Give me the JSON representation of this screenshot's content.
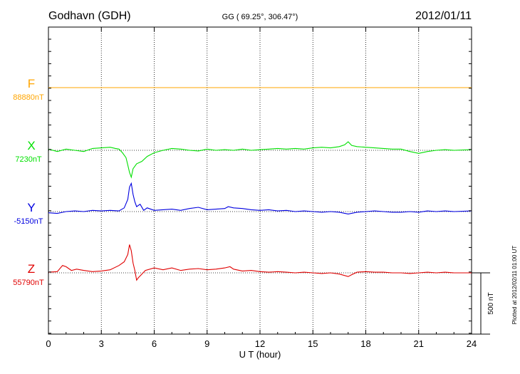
{
  "chart_data": {
    "type": "line",
    "title": "Godhavn (GDH)",
    "subtitle": "GG ( 69.25°, 306.47°)",
    "date": "2012/01/11",
    "xlabel": "U T (hour)",
    "xlim": [
      0,
      24
    ],
    "x_ticks": [
      0,
      3,
      6,
      9,
      12,
      15,
      18,
      21,
      24
    ],
    "x_tick_labels": [
      "0",
      "3",
      "6",
      "9",
      "12",
      "15",
      "18",
      "21",
      "24"
    ],
    "scale_bar_label": "500 nT",
    "scale_bar_nT": 500,
    "plotted_note": "Plotted at 2012/02/11 01:00 UT",
    "grid": true,
    "series": [
      {
        "name": "F",
        "baseline_label": "88880nT",
        "baseline_nT": 88880,
        "color": "#ffa500",
        "points": [
          [
            0,
            0
          ],
          [
            24,
            0
          ]
        ]
      },
      {
        "name": "X",
        "baseline_label": "7230nT",
        "baseline_nT": 7230,
        "color": "#00e000",
        "points": [
          [
            0,
            10
          ],
          [
            0.5,
            -10
          ],
          [
            1,
            10
          ],
          [
            1.5,
            0
          ],
          [
            2,
            -10
          ],
          [
            2.5,
            15
          ],
          [
            3,
            20
          ],
          [
            3.5,
            25
          ],
          [
            3.8,
            15
          ],
          [
            4,
            10
          ],
          [
            4.2,
            -20
          ],
          [
            4.4,
            -60
          ],
          [
            4.5,
            -120
          ],
          [
            4.6,
            -180
          ],
          [
            4.7,
            -220
          ],
          [
            4.8,
            -150
          ],
          [
            5,
            -110
          ],
          [
            5.3,
            -90
          ],
          [
            5.6,
            -50
          ],
          [
            6,
            -20
          ],
          [
            6.5,
            0
          ],
          [
            7,
            15
          ],
          [
            7.5,
            10
          ],
          [
            8,
            0
          ],
          [
            8.5,
            -5
          ],
          [
            9,
            10
          ],
          [
            9.5,
            0
          ],
          [
            10,
            5
          ],
          [
            10.5,
            0
          ],
          [
            11,
            10
          ],
          [
            11.5,
            0
          ],
          [
            12,
            5
          ],
          [
            12.5,
            10
          ],
          [
            13,
            15
          ],
          [
            13.5,
            10
          ],
          [
            14,
            15
          ],
          [
            14.5,
            10
          ],
          [
            15,
            20
          ],
          [
            15.5,
            25
          ],
          [
            16,
            20
          ],
          [
            16.5,
            30
          ],
          [
            16.8,
            45
          ],
          [
            17,
            70
          ],
          [
            17.2,
            40
          ],
          [
            17.5,
            30
          ],
          [
            18,
            25
          ],
          [
            18.5,
            20
          ],
          [
            19,
            15
          ],
          [
            19.5,
            10
          ],
          [
            20,
            10
          ],
          [
            20.5,
            -10
          ],
          [
            21,
            -25
          ],
          [
            21.5,
            -10
          ],
          [
            22,
            0
          ],
          [
            22.5,
            5
          ],
          [
            23,
            0
          ],
          [
            24,
            5
          ]
        ]
      },
      {
        "name": "Y",
        "baseline_label": "-5150nT",
        "baseline_nT": -5150,
        "color": "#0000e0",
        "points": [
          [
            0,
            -10
          ],
          [
            0.5,
            -15
          ],
          [
            1,
            0
          ],
          [
            1.5,
            5
          ],
          [
            2,
            0
          ],
          [
            2.5,
            10
          ],
          [
            3,
            5
          ],
          [
            3.5,
            10
          ],
          [
            4,
            5
          ],
          [
            4.3,
            30
          ],
          [
            4.5,
            100
          ],
          [
            4.6,
            200
          ],
          [
            4.7,
            230
          ],
          [
            4.8,
            140
          ],
          [
            4.9,
            80
          ],
          [
            5,
            40
          ],
          [
            5.2,
            60
          ],
          [
            5.4,
            10
          ],
          [
            5.6,
            30
          ],
          [
            6,
            10
          ],
          [
            6.5,
            15
          ],
          [
            7,
            20
          ],
          [
            7.5,
            10
          ],
          [
            8,
            25
          ],
          [
            8.5,
            35
          ],
          [
            9,
            15
          ],
          [
            9.5,
            20
          ],
          [
            10,
            25
          ],
          [
            10.2,
            40
          ],
          [
            10.5,
            30
          ],
          [
            11,
            25
          ],
          [
            11.5,
            15
          ],
          [
            12,
            10
          ],
          [
            12.5,
            15
          ],
          [
            13,
            5
          ],
          [
            13.5,
            10
          ],
          [
            14,
            0
          ],
          [
            14.5,
            5
          ],
          [
            15,
            0
          ],
          [
            15.5,
            -5
          ],
          [
            16,
            0
          ],
          [
            16.5,
            -5
          ],
          [
            17,
            -20
          ],
          [
            17.5,
            -5
          ],
          [
            18,
            0
          ],
          [
            18.5,
            5
          ],
          [
            19,
            0
          ],
          [
            19.5,
            -5
          ],
          [
            20,
            -5
          ],
          [
            20.5,
            0
          ],
          [
            21,
            -5
          ],
          [
            21.5,
            5
          ],
          [
            22,
            0
          ],
          [
            22.5,
            5
          ],
          [
            23,
            0
          ],
          [
            24,
            5
          ]
        ]
      },
      {
        "name": "Z",
        "baseline_label": "55790nT",
        "baseline_nT": 55790,
        "color": "#e00000",
        "points": [
          [
            0,
            5
          ],
          [
            0.5,
            10
          ],
          [
            0.8,
            60
          ],
          [
            1,
            50
          ],
          [
            1.3,
            20
          ],
          [
            1.6,
            30
          ],
          [
            2,
            20
          ],
          [
            2.5,
            10
          ],
          [
            3,
            15
          ],
          [
            3.5,
            25
          ],
          [
            4,
            60
          ],
          [
            4.3,
            90
          ],
          [
            4.5,
            150
          ],
          [
            4.6,
            230
          ],
          [
            4.7,
            180
          ],
          [
            4.8,
            80
          ],
          [
            4.9,
            20
          ],
          [
            5,
            -60
          ],
          [
            5.1,
            -40
          ],
          [
            5.3,
            -10
          ],
          [
            5.5,
            20
          ],
          [
            6,
            40
          ],
          [
            6.5,
            25
          ],
          [
            7,
            40
          ],
          [
            7.5,
            20
          ],
          [
            8,
            30
          ],
          [
            8.5,
            35
          ],
          [
            9,
            25
          ],
          [
            9.5,
            30
          ],
          [
            10,
            40
          ],
          [
            10.3,
            50
          ],
          [
            10.5,
            30
          ],
          [
            11,
            15
          ],
          [
            11.5,
            20
          ],
          [
            12,
            10
          ],
          [
            12.5,
            5
          ],
          [
            13,
            10
          ],
          [
            13.5,
            5
          ],
          [
            14,
            0
          ],
          [
            14.5,
            5
          ],
          [
            15,
            0
          ],
          [
            15.5,
            -5
          ],
          [
            16,
            0
          ],
          [
            16.5,
            -10
          ],
          [
            17,
            -30
          ],
          [
            17.2,
            -15
          ],
          [
            17.5,
            5
          ],
          [
            18,
            10
          ],
          [
            18.5,
            5
          ],
          [
            19,
            5
          ],
          [
            19.5,
            0
          ],
          [
            20,
            0
          ],
          [
            20.5,
            -5
          ],
          [
            21,
            0
          ],
          [
            21.5,
            5
          ],
          [
            22,
            0
          ],
          [
            22.5,
            5
          ],
          [
            23,
            0
          ],
          [
            24,
            0
          ]
        ]
      }
    ]
  }
}
